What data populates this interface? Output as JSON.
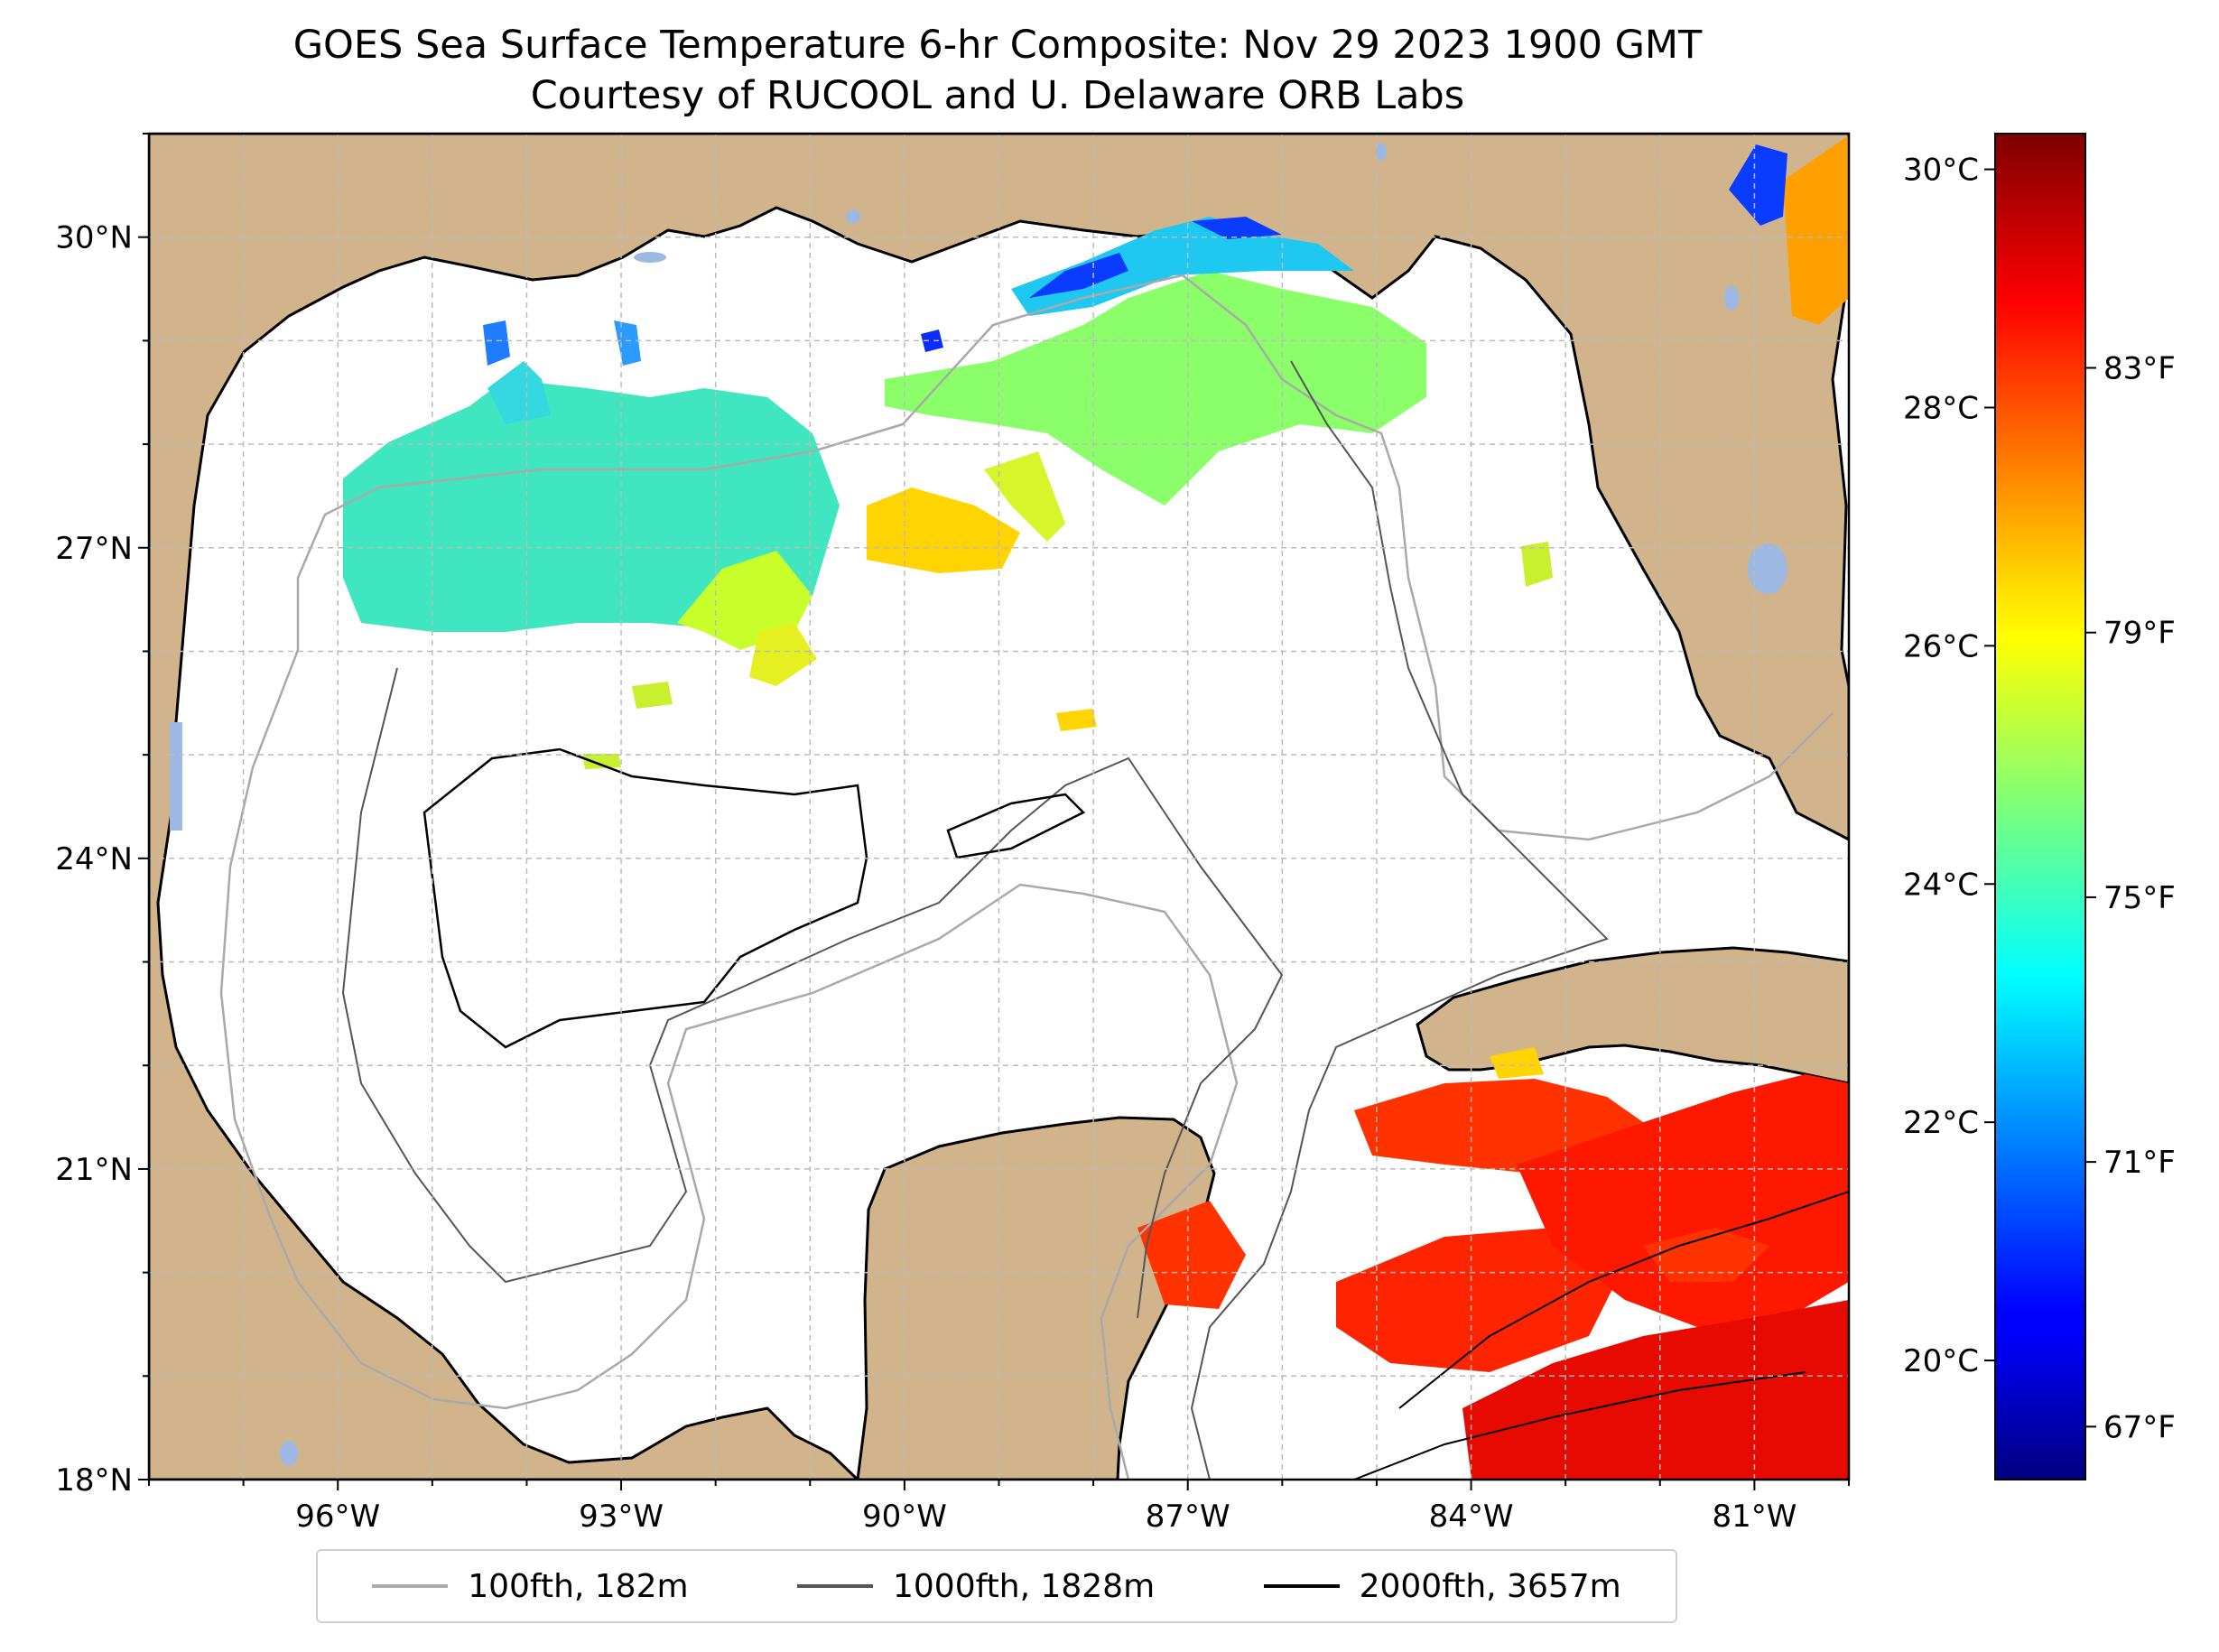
{
  "title": {
    "line1": "GOES Sea Surface Temperature 6-hr Composite: Nov 29 2023 1900 GMT",
    "line2": "Courtesy of RUCOOL and U. Delaware ORB Labs"
  },
  "map": {
    "lat_range": [
      18,
      31
    ],
    "lon_range": [
      -98,
      -80
    ],
    "lat_ticks": [
      {
        "value": 18,
        "label": "18°N"
      },
      {
        "value": 21,
        "label": "21°N"
      },
      {
        "value": 24,
        "label": "24°N"
      },
      {
        "value": 27,
        "label": "27°N"
      },
      {
        "value": 30,
        "label": "30°N"
      }
    ],
    "lon_ticks": [
      {
        "value": -96,
        "label": "96°W"
      },
      {
        "value": -93,
        "label": "93°W"
      },
      {
        "value": -90,
        "label": "90°W"
      },
      {
        "value": -87,
        "label": "87°W"
      },
      {
        "value": -84,
        "label": "84°W"
      },
      {
        "value": -81,
        "label": "81°W"
      }
    ],
    "land_color": "#d2b48c",
    "lake_color": "#9db8e3",
    "ocean_color": "#ffffff"
  },
  "colorbar": {
    "colormap": "jet",
    "range_c": [
      19,
      30.3
    ],
    "celsius_ticks": [
      {
        "value": 20,
        "label": "20°C"
      },
      {
        "value": 22,
        "label": "22°C"
      },
      {
        "value": 24,
        "label": "24°C"
      },
      {
        "value": 26,
        "label": "26°C"
      },
      {
        "value": 28,
        "label": "28°C"
      },
      {
        "value": 30,
        "label": "30°C"
      }
    ],
    "fahrenheit_ticks": [
      {
        "value": 67,
        "label": "67°F"
      },
      {
        "value": 71,
        "label": "71°F"
      },
      {
        "value": 75,
        "label": "75°F"
      },
      {
        "value": 79,
        "label": "79°F"
      },
      {
        "value": 83,
        "label": "83°F"
      }
    ]
  },
  "legend": [
    {
      "label": "100fth, 182m",
      "color": "#a9a9a9"
    },
    {
      "label": "1000fth, 1828m",
      "color": "#555555"
    },
    {
      "label": "2000fth, 3657m",
      "color": "#000000"
    }
  ]
}
